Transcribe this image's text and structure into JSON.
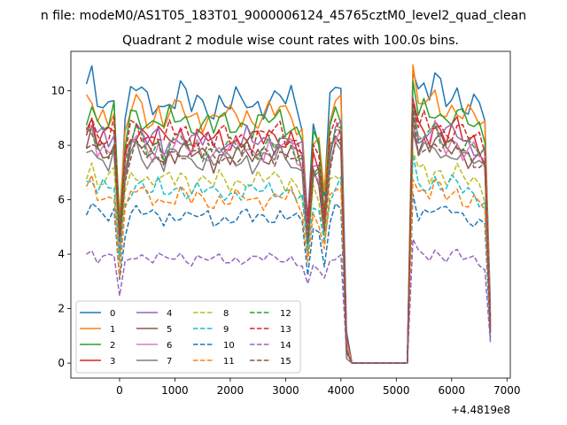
{
  "chart_data": {
    "type": "line",
    "suptitle": "n file: modeM0/AS1T05_183T01_9000006124_45765cztM0_level2_quad_clean",
    "title": "Quadrant 2 module wise count rates with 100.0s bins.",
    "xlabel": "",
    "ylabel": "",
    "x_offset_label": "+4.4819e8",
    "xlim": [
      -880,
      7060
    ],
    "ylim": [
      -0.55,
      11.45
    ],
    "x_ticks": [
      0,
      1000,
      2000,
      3000,
      4000,
      5000,
      6000,
      7000
    ],
    "x_tick_labels": [
      "0",
      "1000",
      "2000",
      "3000",
      "4000",
      "5000",
      "6000",
      "7000"
    ],
    "y_ticks": [
      0,
      2,
      4,
      6,
      8,
      10
    ],
    "y_tick_labels": [
      "0",
      "2",
      "4",
      "6",
      "8",
      "10"
    ],
    "grid": false,
    "legend_placement": "lower-left",
    "legend_columns": 4,
    "x": [
      -600,
      -500,
      -400,
      -300,
      -200,
      -100,
      0,
      100,
      200,
      300,
      400,
      500,
      600,
      700,
      800,
      900,
      1000,
      1100,
      1200,
      1300,
      1400,
      1500,
      1600,
      1700,
      1800,
      1900,
      2000,
      2100,
      2200,
      2300,
      2400,
      2500,
      2600,
      2700,
      2800,
      2900,
      3000,
      3100,
      3200,
      3300,
      3400,
      3500,
      3600,
      3700,
      3800,
      3900,
      4000,
      4100,
      4200,
      4300,
      4400,
      4500,
      4600,
      4700,
      4800,
      4900,
      5000,
      5100,
      5200,
      5300,
      5400,
      5500,
      5600,
      5700,
      5800,
      5900,
      6000,
      6100,
      6200,
      6300,
      6400,
      6500,
      6600,
      6700
    ],
    "series_template": {
      "base": [
        1.0,
        1.04,
        0.96,
        0.97,
        0.95,
        0.99,
        0.55,
        0.88,
        0.98,
        1.01,
        0.99,
        0.96,
        0.95,
        0.98,
        0.93,
        0.97,
        0.96,
        0.99,
        0.97,
        0.94,
        0.97,
        0.95,
        0.96,
        0.93,
        0.96,
        0.95,
        0.94,
        0.96,
        0.95,
        0.97,
        0.94,
        0.96,
        0.95,
        0.97,
        0.96,
        0.98,
        0.95,
        0.97,
        0.93,
        0.9,
        0.58,
        0.88,
        0.85,
        0.66,
        0.94,
        1.01,
        1.01,
        0.08,
        0,
        0,
        0,
        0,
        0,
        0,
        0,
        0,
        0,
        0,
        0.01,
        1.12,
        0.99,
        1.01,
        0.98,
        1.03,
        1.0,
        0.97,
        0.99,
        1.0,
        0.96,
        0.95,
        0.95,
        0.93,
        0.9,
        0.18
      ],
      "spike": [
        0,
        0,
        0,
        0,
        0,
        0,
        0.2,
        0.06,
        0,
        0,
        0,
        0,
        0,
        0,
        0,
        0,
        0,
        0,
        0,
        0,
        0,
        0,
        0,
        0,
        0,
        0,
        0,
        0,
        0,
        0,
        0,
        0,
        0,
        0,
        0,
        0,
        0,
        0,
        0,
        0,
        0.3,
        0,
        0.05,
        0.3,
        0,
        0,
        0,
        0,
        0,
        0,
        0,
        0,
        0,
        0,
        0,
        0,
        0,
        0,
        0,
        0,
        0,
        0,
        0,
        0,
        0,
        0,
        0,
        0,
        0,
        0,
        0,
        0,
        0,
        0
      ]
    },
    "series": [
      {
        "name": "0",
        "level": 10.0,
        "color": "#1f77b4",
        "dashed": false
      },
      {
        "name": "1",
        "level": 9.5,
        "color": "#ff7f0e",
        "dashed": false
      },
      {
        "name": "2",
        "level": 9.2,
        "color": "#2ca02c",
        "dashed": false
      },
      {
        "name": "3",
        "level": 8.6,
        "color": "#d62728",
        "dashed": false
      },
      {
        "name": "4",
        "level": 8.5,
        "color": "#9467bd",
        "dashed": false
      },
      {
        "name": "5",
        "level": 8.0,
        "color": "#8c564b",
        "dashed": false
      },
      {
        "name": "6",
        "level": 8.2,
        "color": "#e377c2",
        "dashed": false
      },
      {
        "name": "7",
        "level": 7.8,
        "color": "#7f7f7f",
        "dashed": false
      },
      {
        "name": "8",
        "level": 7.0,
        "color": "#bcbd22",
        "dashed": true
      },
      {
        "name": "9",
        "level": 6.6,
        "color": "#17becf",
        "dashed": true
      },
      {
        "name": "10",
        "level": 5.6,
        "color": "#1f77b4",
        "dashed": true
      },
      {
        "name": "11",
        "level": 6.3,
        "color": "#ff7f0e",
        "dashed": true
      },
      {
        "name": "12",
        "level": 8.3,
        "color": "#2ca02c",
        "dashed": true
      },
      {
        "name": "13",
        "level": 8.7,
        "color": "#d62728",
        "dashed": true
      },
      {
        "name": "14",
        "level": 4.0,
        "color": "#9467bd",
        "dashed": true
      },
      {
        "name": "15",
        "level": 8.0,
        "color": "#8c564b",
        "dashed": true
      }
    ]
  }
}
